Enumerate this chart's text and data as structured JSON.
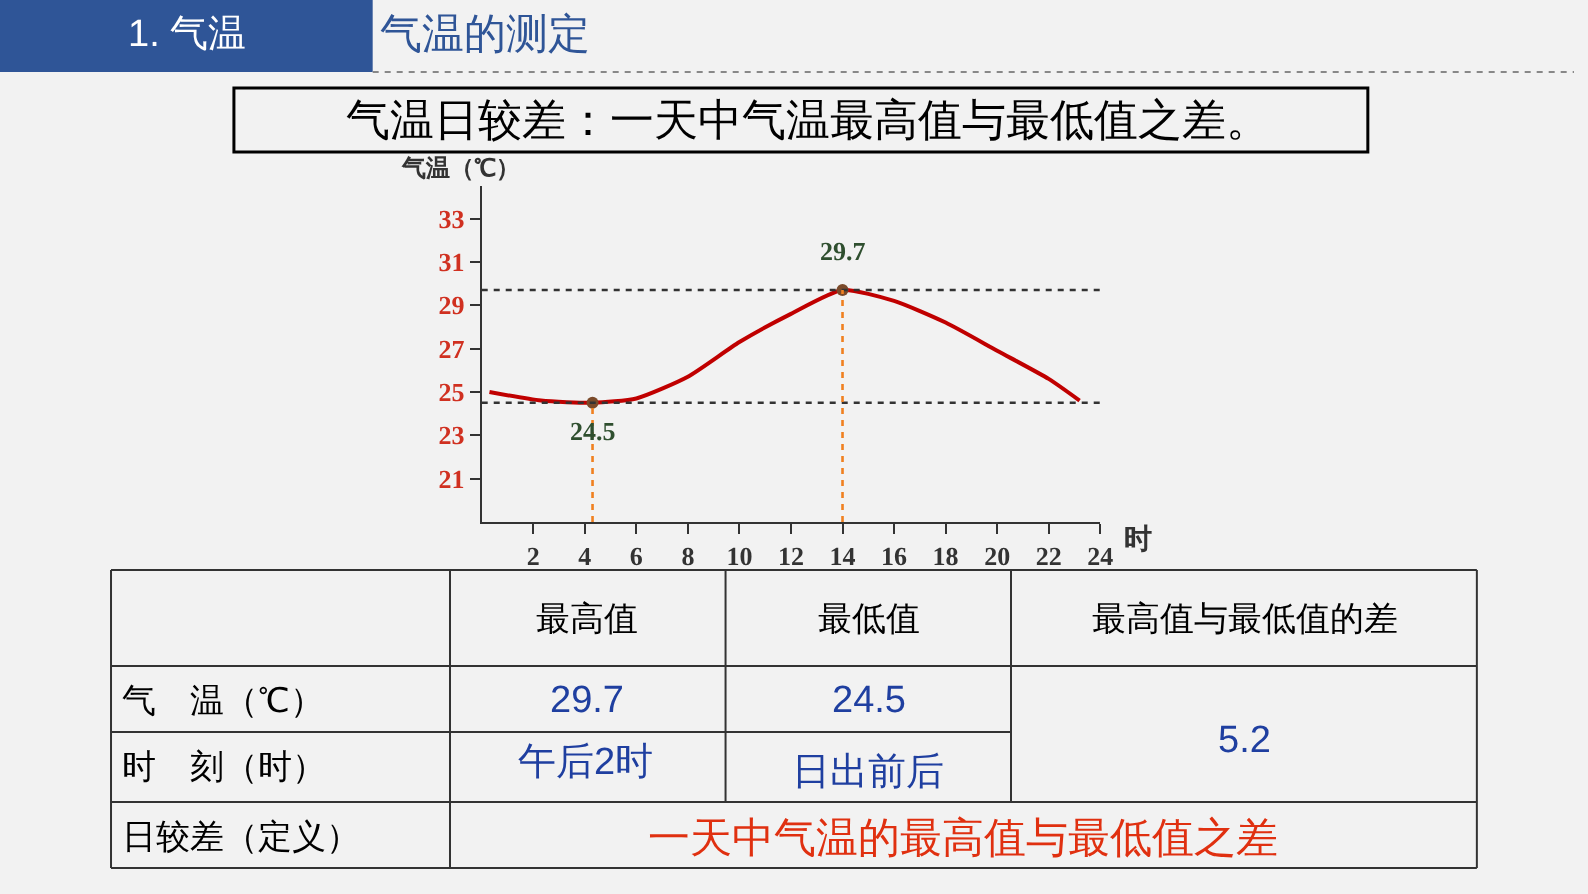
{
  "chart_data": {
    "type": "line",
    "title": "气温日较差：一天中气温最高值与最低值之差。",
    "xlabel": "时",
    "ylabel": "气温（℃）",
    "series": [
      {
        "color": "#c00000",
        "x": [
          0.3,
          2.3,
          4.3,
          6,
          8,
          10,
          12,
          14,
          16,
          18,
          20,
          22,
          23.2
        ],
        "values": [
          25.0,
          24.6,
          24.5,
          24.7,
          25.7,
          27.3,
          28.6,
          29.7,
          29.2,
          28.2,
          26.9,
          25.6,
          24.6
        ]
      },
      {
        "type": "scatter",
        "color": "#7a4a2a",
        "marker": "circle",
        "x": [
          4.3,
          14
        ],
        "values": [
          24.5,
          29.7
        ]
      }
    ],
    "xlim": [
      0,
      24
    ],
    "xticks": [
      2,
      4,
      6,
      8,
      10,
      12,
      14,
      16,
      18,
      20,
      22,
      24
    ],
    "ylim": [
      19,
      34.5
    ],
    "yticks": [
      21,
      23,
      25,
      27,
      29,
      31,
      33
    ],
    "grid": false,
    "legend": false,
    "marker": "none",
    "line_style": "solid",
    "ref_lines": [
      {
        "axis": "y",
        "value": 29.7,
        "color": "#333333",
        "line_style": "dotted"
      },
      {
        "axis": "y",
        "value": 24.5,
        "color": "#333333",
        "line_style": "dotted"
      },
      {
        "axis": "x",
        "value": 4.3,
        "color": "#f08020",
        "line_style": "dotted"
      },
      {
        "axis": "x",
        "value": 14,
        "color": "#f08020",
        "line_style": "dotted"
      }
    ],
    "annotations": [
      "1. 气温",
      "气温的测定",
      {
        "text": "29.7",
        "x": 14,
        "y": 29.7
      },
      {
        "text": "24.5",
        "x": 4.3,
        "y": 24.5
      },
      "最高值",
      "最低值",
      "最高值与最低值的差",
      "气　温（℃）",
      "29.7",
      "24.5",
      "5.2",
      "时　刻（时）",
      "午后2时",
      "日出前后",
      "日较差（定义）",
      "一天中气温的最高值与最低值之差"
    ]
  }
}
